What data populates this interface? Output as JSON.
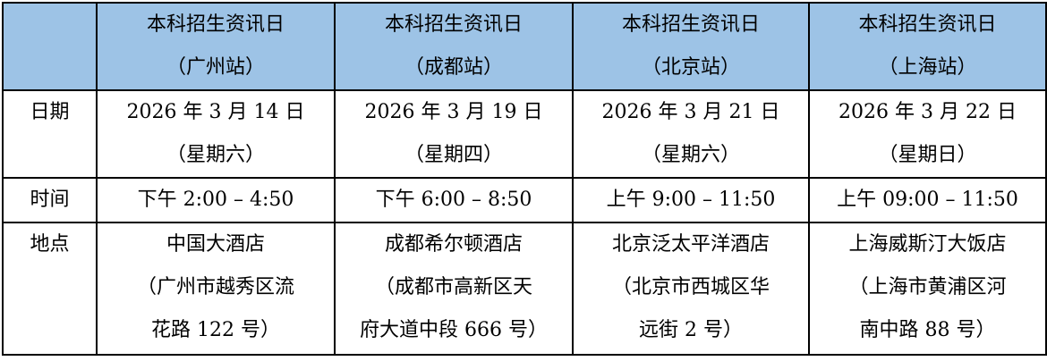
{
  "colors": {
    "header_bg": "#9DC3E6",
    "border": "#000000"
  },
  "header": [
    {
      "lines": [
        "本科招生资讯日",
        "（广州站）"
      ]
    },
    {
      "lines": [
        "本科招生资讯日",
        "（成都站）"
      ]
    },
    {
      "lines": [
        "本科招生资讯日",
        "（北京站）"
      ]
    },
    {
      "lines": [
        "本科招生资讯日",
        "（上海站）"
      ]
    }
  ],
  "rows": [
    {
      "label": "日期",
      "cells": [
        {
          "lines": [
            "2026 年 3 月 14 日",
            "（星期六）"
          ]
        },
        {
          "lines": [
            "2026 年 3 月 19 日",
            "（星期四）"
          ]
        },
        {
          "lines": [
            "2026 年 3 月 21 日",
            "（星期六）"
          ]
        },
        {
          "lines": [
            "2026 年 3 月 22 日",
            "（星期日）"
          ]
        }
      ]
    },
    {
      "label": "时间",
      "cells": [
        {
          "lines": [
            "下午 2:00 – 4:50"
          ]
        },
        {
          "lines": [
            "下午 6:00 – 8:50"
          ]
        },
        {
          "lines": [
            "上午 9:00 – 11:50"
          ]
        },
        {
          "lines": [
            "上午 09:00 – 11:50"
          ]
        }
      ]
    },
    {
      "label": "地点",
      "cells": [
        {
          "lines": [
            "中国大酒店",
            "（广州市越秀区流",
            "花路 122 号）"
          ]
        },
        {
          "lines": [
            "成都希尔顿酒店",
            "（成都市高新区天",
            "府大道中段 666 号）"
          ]
        },
        {
          "lines": [
            "北京泛太平洋酒店",
            "（北京市西城区华",
            "远街 2 号）"
          ]
        },
        {
          "lines": [
            "上海威斯汀大饭店",
            "（上海市黄浦区河",
            "南中路 88 号）"
          ]
        }
      ]
    }
  ]
}
